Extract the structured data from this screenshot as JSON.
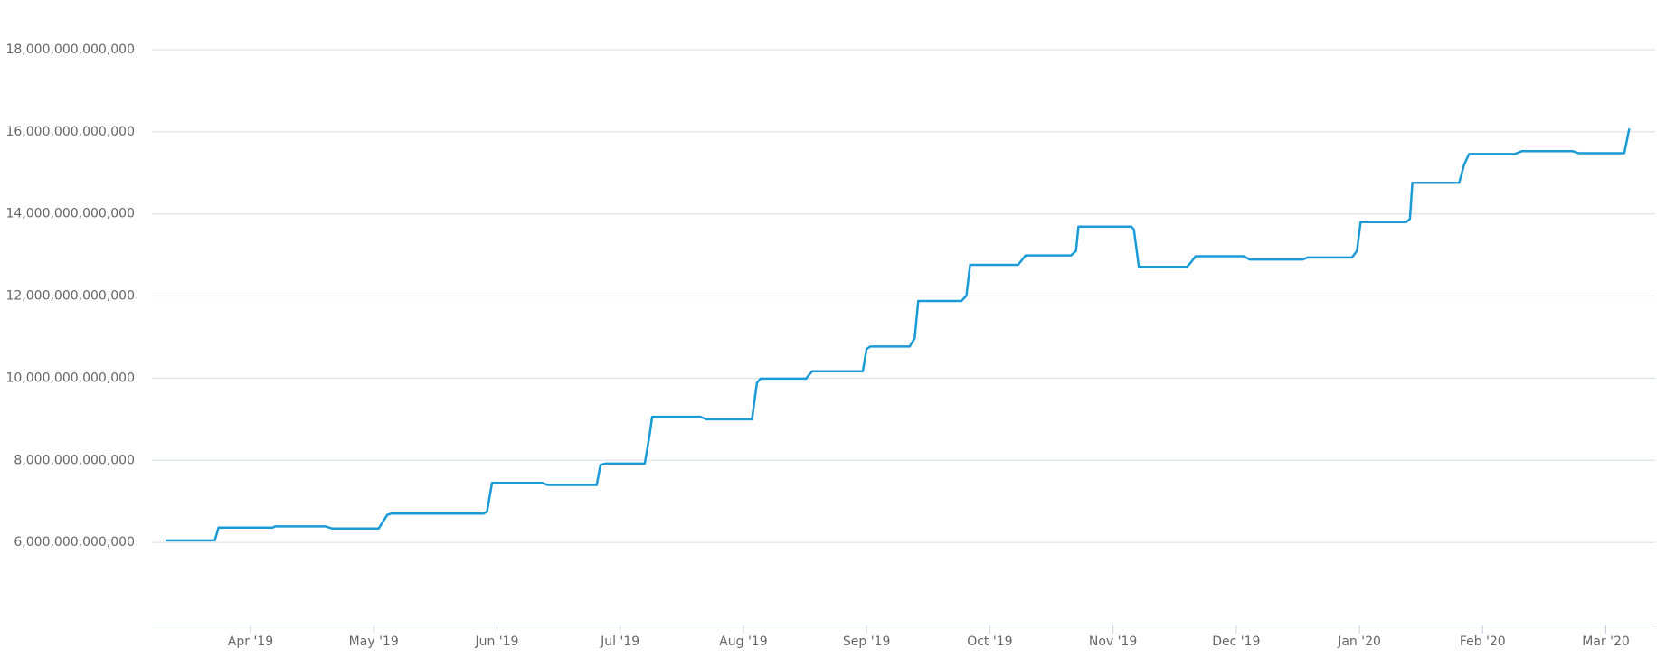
{
  "chart_data": {
    "type": "line",
    "color": "#1a9ad6",
    "grid": true,
    "x": [
      0.31,
      0.71,
      0.74,
      1.18,
      1.2,
      1.61,
      1.66,
      2.04,
      2.11,
      2.14,
      2.89,
      2.92,
      2.96,
      3.37,
      3.41,
      3.81,
      3.84,
      3.88,
      4.2,
      4.24,
      4.26,
      4.65,
      4.7,
      5.07,
      5.11,
      5.14,
      5.51,
      5.53,
      5.56,
      5.97,
      6.0,
      6.03,
      6.35,
      6.39,
      6.42,
      6.77,
      6.81,
      6.84,
      7.23,
      7.29,
      7.66,
      7.7,
      7.72,
      8.15,
      8.17,
      8.21,
      8.6,
      8.63,
      8.67,
      9.06,
      9.11,
      9.54,
      9.58,
      9.94,
      9.98,
      10.01,
      10.38,
      10.41,
      10.43,
      10.81,
      10.85,
      10.89,
      11.26,
      11.32,
      11.73,
      11.78,
      12.15,
      12.19
    ],
    "values": [
      6050000000000,
      6050000000000,
      6360000000000,
      6360000000000,
      6390000000000,
      6390000000000,
      6340000000000,
      6340000000000,
      6670000000000,
      6700000000000,
      6700000000000,
      6750000000000,
      7450000000000,
      7450000000000,
      7400000000000,
      7400000000000,
      7890000000000,
      7920000000000,
      7920000000000,
      8640000000000,
      9060000000000,
      9060000000000,
      9000000000000,
      9000000000000,
      9890000000000,
      9990000000000,
      9990000000000,
      10070000000000,
      10170000000000,
      10170000000000,
      10710000000000,
      10770000000000,
      10770000000000,
      10970000000000,
      11880000000000,
      11880000000000,
      12010000000000,
      12760000000000,
      12760000000000,
      12990000000000,
      12990000000000,
      13100000000000,
      13690000000000,
      13690000000000,
      13620000000000,
      12710000000000,
      12710000000000,
      12810000000000,
      12970000000000,
      12970000000000,
      12890000000000,
      12890000000000,
      12940000000000,
      12940000000000,
      13100000000000,
      13800000000000,
      13800000000000,
      13880000000000,
      14760000000000,
      14760000000000,
      15200000000000,
      15460000000000,
      15460000000000,
      15530000000000,
      15530000000000,
      15480000000000,
      15480000000000,
      16080000000000
    ],
    "xlim": [
      0.2,
      12.4
    ],
    "xticks": [
      {
        "value": 1,
        "label": "Apr '19"
      },
      {
        "value": 2,
        "label": "May '19"
      },
      {
        "value": 3,
        "label": "Jun '19"
      },
      {
        "value": 4,
        "label": "Jul '19"
      },
      {
        "value": 5,
        "label": "Aug '19"
      },
      {
        "value": 6,
        "label": "Sep '19"
      },
      {
        "value": 7,
        "label": "Oct '19"
      },
      {
        "value": 8,
        "label": "Nov '19"
      },
      {
        "value": 9,
        "label": "Dec '19"
      },
      {
        "value": 10,
        "label": "Jan '20"
      },
      {
        "value": 11,
        "label": "Feb '20"
      },
      {
        "value": 12,
        "label": "Mar '20"
      }
    ],
    "ylim": [
      4000000000000,
      18000000000000
    ],
    "yticks": [
      {
        "value": 6000000000000,
        "label": "6,000,000,000,000"
      },
      {
        "value": 8000000000000,
        "label": "8,000,000,000,000"
      },
      {
        "value": 10000000000000,
        "label": "10,000,000,000,000"
      },
      {
        "value": 12000000000000,
        "label": "12,000,000,000,000"
      },
      {
        "value": 14000000000000,
        "label": "14,000,000,000,000"
      },
      {
        "value": 16000000000000,
        "label": "16,000,000,000,000"
      },
      {
        "value": 18000000000000,
        "label": "18,000,000,000,000"
      }
    ]
  }
}
